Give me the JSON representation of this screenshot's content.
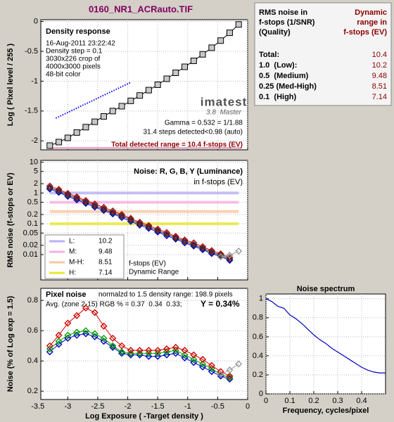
{
  "file_title": "0160_NR1_ACRauto.TIF",
  "chart_data": [
    {
      "type": "line",
      "title": "Density response",
      "ylabel": "Log ( Pixel level / 255 )",
      "annotations": [
        "16-Aug-2011 23:22:42",
        "Density step = 0.1",
        "3030x226 crop of",
        "4000x3000 pixels",
        "48-bit color",
        "Gamma = 0.532 = 1/1.88",
        "31.4 steps detected<0.98 (auto)",
        "Total detected range = 10.4 f-stops (EV)"
      ],
      "logo": [
        "imatest",
        "3.8  Master"
      ],
      "xlim": [
        -3.45,
        0
      ],
      "ylim": [
        -2.15,
        0.03
      ],
      "yticks": [
        0,
        -0.5,
        -1,
        -1.5,
        -2
      ],
      "grid": true,
      "marker": "square",
      "marker_fill": "#c8c8c8",
      "x": [
        -3.3,
        -3.15,
        -3,
        -2.85,
        -2.7,
        -2.55,
        -2.4,
        -2.25,
        -2.1,
        -1.95,
        -1.8,
        -1.65,
        -1.5,
        -1.35,
        -1.2,
        -1.05,
        -0.9,
        -0.75,
        -0.6,
        -0.45,
        -0.3,
        -0.15
      ],
      "series": [
        {
          "color": "#000000",
          "values": [
            -2.08,
            -2.02,
            -1.95,
            -1.86,
            -1.77,
            -1.68,
            -1.59,
            -1.5,
            -1.42,
            -1.33,
            -1.24,
            -1.15,
            -1.06,
            -0.96,
            -0.86,
            -0.76,
            -0.66,
            -0.55,
            -0.44,
            -0.32,
            -0.19,
            -0.05
          ]
        }
      ],
      "fit_line": {
        "x": [
          -3.2,
          -1.95
        ],
        "values": [
          -1.62,
          -1.02
        ],
        "color": "#0000ff"
      },
      "range_bar": {
        "x": [
          -3.3,
          -0.1
        ],
        "value": -2.12,
        "color": "#e8b0c8"
      }
    },
    {
      "type": "line",
      "title": "Noise: R, G, B, Y (Luminance)",
      "subtitle": "in f-stops (EV)",
      "ylabel": "RMS noise (f-stops or EV)",
      "log_y": true,
      "xlim": [
        -3.45,
        0
      ],
      "ylim": [
        0.0015,
        11.5
      ],
      "yticks": [
        10,
        5,
        2,
        1,
        0.5,
        0.2,
        0.1,
        0.05,
        0.02,
        0.01
      ],
      "grid": true,
      "marker": "diamond",
      "x": [
        -3.3,
        -3.15,
        -3,
        -2.85,
        -2.7,
        -2.55,
        -2.4,
        -2.25,
        -2.1,
        -1.95,
        -1.8,
        -1.65,
        -1.5,
        -1.35,
        -1.2,
        -1.05,
        -0.9,
        -0.75,
        -0.6,
        -0.45,
        -0.3,
        -0.15
      ],
      "series": [
        {
          "color": "#0000c0",
          "values": [
            1.35,
            1.05,
            0.78,
            0.6,
            0.46,
            0.35,
            0.27,
            0.21,
            0.16,
            0.12,
            0.09,
            0.071,
            0.054,
            0.041,
            0.032,
            0.024,
            0.019,
            0.0144,
            0.0108,
            0.0086,
            0.0065,
            null
          ]
        },
        {
          "color": "#c00000",
          "values": [
            1.68,
            1.31,
            0.97,
            0.75,
            0.57,
            0.44,
            0.34,
            0.26,
            0.2,
            0.15,
            0.112,
            0.088,
            0.067,
            0.052,
            0.039,
            0.03,
            0.024,
            0.018,
            0.0135,
            0.0106,
            0.0081,
            null
          ]
        },
        {
          "color": "#303030",
          "values": [
            1.5,
            1.17,
            0.87,
            0.67,
            0.51,
            0.39,
            0.3,
            0.23,
            0.18,
            0.135,
            0.1,
            0.079,
            0.06,
            0.046,
            0.035,
            0.027,
            0.021,
            0.016,
            0.012,
            0.0095,
            0.0072,
            null
          ]
        },
        {
          "color": "#999999",
          "values": [
            null,
            null,
            null,
            null,
            null,
            null,
            null,
            null,
            null,
            null,
            null,
            null,
            null,
            null,
            null,
            null,
            null,
            null,
            null,
            0.0085,
            0.0095,
            0.013
          ]
        }
      ],
      "thresholds": [
        {
          "name": "L:",
          "level": 1,
          "dr": 10.2,
          "color": "#b8b0f8"
        },
        {
          "name": "M:",
          "level": 0.5,
          "dr": 9.48,
          "color": "#f8b0e0"
        },
        {
          "name": "M-H:",
          "level": 0.25,
          "dr": 8.51,
          "color": "#f8c8a0"
        },
        {
          "name": "H:",
          "level": 0.1,
          "dr": 7.14,
          "color": "#e8e830"
        }
      ],
      "legend_note": [
        "f-stops (EV)",
        "Dynamic Range"
      ]
    },
    {
      "type": "line",
      "title": "Pixel noise",
      "ylabel": "Noise (% of Log exp = 1.5)",
      "xlabel": "Log Exposure ( -Target density )",
      "annotations": [
        "normalzd to 1.5 density range: 198.9 pixels",
        "Avg. (zone 2-15) RGB % = 0.37  0.34  0.33;",
        "Y = 0.34%"
      ],
      "xlim": [
        -3.45,
        0
      ],
      "xticks": [
        -3.5,
        -3,
        -2.5,
        -2,
        -1.5,
        -1,
        -0.5,
        0
      ],
      "ylim": [
        0.145,
        0.88
      ],
      "yticks": [
        0.2,
        0.4,
        0.6,
        0.8
      ],
      "grid": true,
      "marker": "diamond",
      "x": [
        -3.3,
        -3.15,
        -3,
        -2.85,
        -2.7,
        -2.55,
        -2.4,
        -2.25,
        -2.1,
        -1.95,
        -1.8,
        -1.65,
        -1.5,
        -1.35,
        -1.2,
        -1.05,
        -0.9,
        -0.75,
        -0.6,
        -0.45,
        -0.3,
        -0.15
      ],
      "series": [
        {
          "color": "#0000c0",
          "values": [
            0.46,
            0.51,
            0.55,
            0.57,
            0.58,
            0.56,
            0.53,
            0.49,
            0.45,
            0.44,
            0.44,
            0.43,
            0.43,
            0.44,
            0.45,
            0.42,
            0.39,
            0.36,
            0.33,
            0.3,
            0.28,
            null
          ]
        },
        {
          "color": "#00a000",
          "values": [
            0.48,
            0.53,
            0.57,
            0.59,
            0.6,
            0.58,
            0.55,
            0.5,
            0.46,
            0.45,
            0.45,
            0.45,
            0.45,
            0.46,
            0.47,
            0.44,
            0.41,
            0.38,
            0.35,
            0.31,
            0.29,
            null
          ]
        },
        {
          "color": "#d00000",
          "values": [
            0.5,
            0.57,
            0.65,
            0.7,
            0.75,
            0.72,
            0.63,
            0.55,
            0.5,
            0.47,
            0.47,
            0.47,
            0.47,
            0.48,
            0.49,
            0.47,
            0.44,
            0.41,
            0.37,
            0.33,
            0.3,
            null
          ]
        },
        {
          "color": "#999999",
          "values": [
            null,
            null,
            null,
            null,
            null,
            null,
            null,
            null,
            null,
            null,
            null,
            null,
            null,
            null,
            null,
            null,
            null,
            null,
            null,
            0.31,
            0.34,
            0.38
          ]
        }
      ]
    },
    {
      "type": "line",
      "title": "Noise spectrum",
      "xlabel": "Frequency, cycles/pixel",
      "xlim": [
        0,
        0.5
      ],
      "xticks": [
        0,
        0.1,
        0.2,
        0.3,
        0.4
      ],
      "ylim": [
        0,
        1.05
      ],
      "yticks": [
        0,
        0.2,
        0.4,
        0.6,
        0.8,
        1
      ],
      "grid": true,
      "x": [
        0,
        0.025,
        0.05,
        0.075,
        0.1,
        0.125,
        0.15,
        0.175,
        0.2,
        0.225,
        0.25,
        0.275,
        0.3,
        0.325,
        0.35,
        0.375,
        0.4,
        0.425,
        0.45,
        0.475,
        0.5
      ],
      "series": [
        {
          "color": "#0000c0",
          "values": [
            1,
            0.97,
            0.92,
            0.9,
            0.83,
            0.79,
            0.74,
            0.68,
            0.62,
            0.57,
            0.53,
            0.48,
            0.44,
            0.4,
            0.36,
            0.32,
            0.28,
            0.25,
            0.23,
            0.22,
            0.22
          ]
        }
      ]
    }
  ],
  "dynamic_range_table": {
    "left_header": [
      "RMS noise in",
      "f-stops (1/SNR)",
      "(Quality)"
    ],
    "right_header": [
      "Dynamic",
      "range in",
      "f-stops (EV)"
    ],
    "rows": [
      {
        "label": "Total:",
        "value": 10.4
      },
      {
        "label": "1.0  (Low):",
        "value": 10.2
      },
      {
        "label": "0.5  (Medium)",
        "value": 9.48
      },
      {
        "label": "0.25 (Med-High)",
        "value": 8.51
      },
      {
        "label": "0.1  (High)",
        "value": 7.14
      }
    ]
  }
}
